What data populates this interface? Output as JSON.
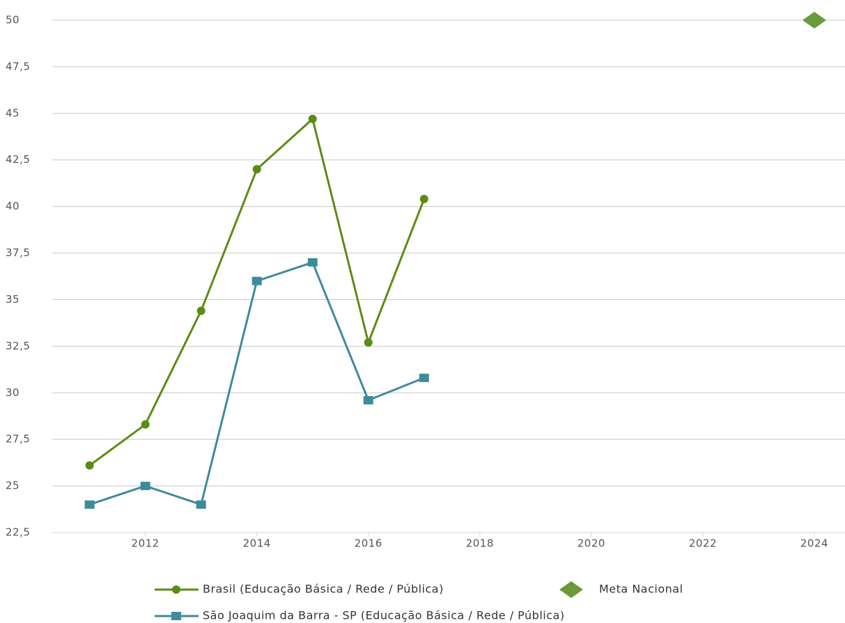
{
  "chart_data": {
    "type": "line",
    "xlim": [
      2010.33,
      2024.55
    ],
    "xticks": [
      2012,
      2014,
      2016,
      2018,
      2020,
      2022,
      2024
    ],
    "ylim": [
      22.5,
      50
    ],
    "yticks": [
      {
        "value": 22.5,
        "label": "22,5"
      },
      25,
      {
        "value": 27.5,
        "label": "27,5"
      },
      30,
      {
        "value": 32.5,
        "label": "32,5"
      },
      35,
      {
        "value": 37.5,
        "label": "37,5"
      },
      40,
      {
        "value": 42.5,
        "label": "42,5"
      },
      45,
      {
        "value": 47.5,
        "label": "47,5"
      },
      50
    ],
    "grid": true,
    "series": [
      {
        "name": "Brasil (Educação Básica / Rede / Pública)",
        "color": "#5b8c14",
        "marker": "circle",
        "x": [
          2011,
          2012,
          2013,
          2014,
          2015,
          2016,
          2017
        ],
        "values": [
          26.1,
          28.3,
          34.4,
          42.0,
          44.7,
          32.7,
          40.4
        ]
      },
      {
        "name": "Meta Nacional",
        "color": "#6a9a3a",
        "marker": "diamond",
        "x": [
          2024
        ],
        "values": [
          50
        ]
      },
      {
        "name": "São Joaquim da Barra - SP (Educação Básica / Rede / Pública)",
        "color": "#3d8b9b",
        "marker": "square",
        "x": [
          2011,
          2012,
          2013,
          2014,
          2015,
          2016,
          2017
        ],
        "values": [
          24,
          25,
          24,
          36,
          37,
          29.6,
          30.8
        ]
      }
    ]
  }
}
